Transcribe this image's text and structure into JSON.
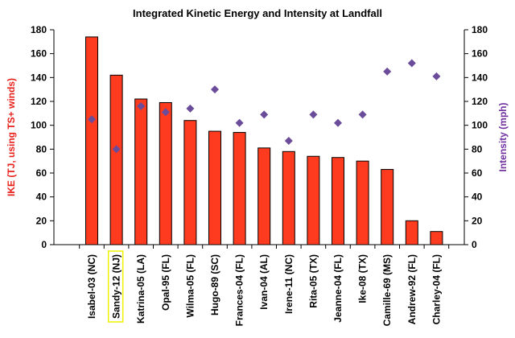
{
  "chart_data": {
    "type": "bar",
    "title": "Integrated Kinetic Energy and Intensity at Landfall",
    "ylabel_left": "IKE (TJ, using TS+ winds)",
    "ylabel_right": "Intensity (mph)",
    "ylim_left": [
      0,
      180
    ],
    "ylim_right": [
      0,
      180
    ],
    "yticks_left": [
      0,
      20,
      40,
      60,
      80,
      100,
      120,
      140,
      160,
      180
    ],
    "yticks_right": [
      0,
      20,
      40,
      60,
      80,
      100,
      120,
      140,
      160,
      180
    ],
    "categories": [
      "Isabel-03 (NC)",
      "Sandy-12 (NJ)",
      "Katrina-05 (LA)",
      "Opal-95 (FL)",
      "Wilma-05 (FL)",
      "Hugo-89 (SC)",
      "Frances-04 (FL)",
      "Ivan-04 (AL)",
      "Irene-11 (NC)",
      "Rita-05 (TX)",
      "Jeanne-04 (FL)",
      "Ike-08 (TX)",
      "Camille-69 (MS)",
      "Andrew-92 (FL)",
      "Charley-04 (FL)"
    ],
    "highlighted_category": "Sandy-12 (NJ)",
    "series": [
      {
        "type": "bar",
        "axis": "left",
        "color": "#ff3b1f",
        "values": [
          174,
          142,
          122,
          119,
          104,
          95,
          94,
          81,
          78,
          74,
          73,
          70,
          63,
          20,
          11
        ]
      },
      {
        "type": "scatter",
        "axis": "right",
        "marker": "diamond",
        "color": "#6b4c9a",
        "values": [
          105,
          80,
          116,
          111,
          114,
          130,
          102,
          109,
          87,
          109,
          102,
          109,
          145,
          152,
          141
        ]
      }
    ],
    "colors": {
      "left_axis_label": "#e8201a",
      "right_axis_label": "#7030a0",
      "highlight_box": "#f2f200"
    }
  }
}
